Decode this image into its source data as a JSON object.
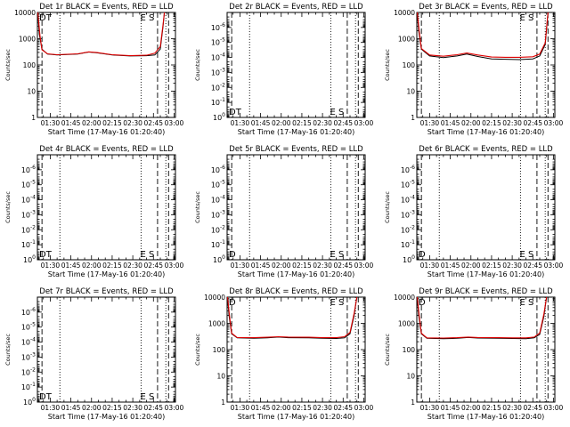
{
  "figure": {
    "panels": [
      {
        "title": "Det 1r BLACK = Events, RED = LLD",
        "scale": "A",
        "ylabel": "Counts/sec",
        "xlabel": "Start Time (17-May-16 01:20:40)",
        "markers": {
          "left": "DT",
          "right": "E S"
        }
      },
      {
        "title": "Det 2r BLACK = Events, RED = LLD",
        "scale": "B",
        "ylabel": "Counts/sec",
        "xlabel": "Start Time (17-May-16 01:20:40)",
        "markers": {
          "left": "DT",
          "right": "E S"
        }
      },
      {
        "title": "Det 3r BLACK = Events, RED = LLD",
        "scale": "A",
        "ylabel": "Counts/sec",
        "xlabel": "Start Time (17-May-16 01:20:40)",
        "markers": {
          "left": "",
          "right": "E S"
        }
      },
      {
        "title": "Det 4r BLACK = Events, RED = LLD",
        "scale": "B",
        "ylabel": "Counts/sec",
        "xlabel": "Start Time (17-May-16 01:20:40)",
        "markers": {
          "left": "DT",
          "right": "E S"
        }
      },
      {
        "title": "Det 5r BLACK = Events, RED = LLD",
        "scale": "B",
        "ylabel": "Counts/sec",
        "xlabel": "Start Time (17-May-16 01:20:40)",
        "markers": {
          "left": "D",
          "right": "E S"
        }
      },
      {
        "title": "Det 6r BLACK = Events, RED = LLD",
        "scale": "B",
        "ylabel": "Counts/sec",
        "xlabel": "Start Time (17-May-16 01:20:40)",
        "markers": {
          "left": "D",
          "right": "E S"
        }
      },
      {
        "title": "Det 7r BLACK = Events, RED = LLD",
        "scale": "B",
        "ylabel": "Counts/sec",
        "xlabel": "Start Time (17-May-16 01:20:40)",
        "markers": {
          "left": "DT",
          "right": "E S"
        }
      },
      {
        "title": "Det 8r BLACK = Events, RED = LLD",
        "scale": "A",
        "ylabel": "Counts/sec",
        "xlabel": "Start Time (17-May-16 01:20:40)",
        "markers": {
          "left": "D",
          "right": "E S"
        }
      },
      {
        "title": "Det 9r BLACK = Events, RED = LLD",
        "scale": "A",
        "ylabel": "Counts/sec",
        "xlabel": "Start Time (17-May-16 01:20:40)",
        "markers": {
          "left": "D",
          "right": "E S"
        }
      }
    ]
  },
  "chart_data": {
    "type": "line",
    "x_ticks": [
      "01:30",
      "01:45",
      "02:00",
      "02:15",
      "02:30",
      "02:45",
      "03:00"
    ],
    "x_tick_minutes": [
      90,
      105,
      120,
      135,
      150,
      165,
      180
    ],
    "xlim_minutes": [
      80.67,
      181
    ],
    "y_scale": "log",
    "scales": {
      "A": {
        "ylim": [
          1,
          10000
        ],
        "ticks": [
          {
            "v": 1,
            "label": "1"
          },
          {
            "v": 10,
            "label": "10"
          },
          {
            "v": 100,
            "label": "100"
          },
          {
            "v": 1000,
            "label": "1000"
          },
          {
            "v": 10000,
            "label": "10000"
          }
        ]
      },
      "B": {
        "ylim": [
          1,
          1e-07
        ],
        "ticks": [
          {
            "v": 1,
            "label": "10^0"
          },
          {
            "v": 0.1,
            "label": "10^-1"
          },
          {
            "v": 0.01,
            "label": "10^-2"
          },
          {
            "v": 0.001,
            "label": "10^-3"
          },
          {
            "v": 0.0001,
            "label": "10^-4"
          },
          {
            "v": 1e-05,
            "label": "10^-5"
          },
          {
            "v": 1e-06,
            "label": "10^-6"
          }
        ]
      }
    },
    "vlines": {
      "dashed": [
        84,
        168,
        176
      ],
      "dotted": [
        97,
        156,
        174
      ]
    },
    "series_colors": {
      "events": "#000000",
      "lld": "#dd0000"
    },
    "panels": [
      {
        "det": "1r",
        "events": [
          [
            81,
            10000
          ],
          [
            82,
            1500
          ],
          [
            84,
            400
          ],
          [
            88,
            260
          ],
          [
            95,
            240
          ],
          [
            110,
            260
          ],
          [
            118,
            310
          ],
          [
            124,
            290
          ],
          [
            135,
            240
          ],
          [
            148,
            220
          ],
          [
            160,
            225
          ],
          [
            166,
            240
          ],
          [
            170,
            400
          ],
          [
            172,
            3000
          ],
          [
            173,
            10000
          ]
        ],
        "lld": [
          [
            81,
            10000
          ],
          [
            82.5,
            1400
          ],
          [
            84,
            380
          ],
          [
            88,
            265
          ],
          [
            95,
            245
          ],
          [
            110,
            265
          ],
          [
            118,
            315
          ],
          [
            124,
            295
          ],
          [
            135,
            245
          ],
          [
            148,
            225
          ],
          [
            160,
            235
          ],
          [
            166,
            280
          ],
          [
            170,
            500
          ],
          [
            172,
            3500
          ],
          [
            173,
            10000
          ]
        ]
      },
      {
        "det": "2r",
        "events": [],
        "lld": []
      },
      {
        "det": "3r",
        "events": [
          [
            81,
            10000
          ],
          [
            82,
            2000
          ],
          [
            84,
            400
          ],
          [
            90,
            220
          ],
          [
            100,
            190
          ],
          [
            110,
            220
          ],
          [
            117,
            260
          ],
          [
            125,
            210
          ],
          [
            135,
            170
          ],
          [
            145,
            165
          ],
          [
            155,
            160
          ],
          [
            165,
            170
          ],
          [
            170,
            220
          ],
          [
            174,
            600
          ],
          [
            176,
            10000
          ]
        ],
        "lld": [
          [
            81,
            10000
          ],
          [
            82.5,
            1800
          ],
          [
            84,
            420
          ],
          [
            90,
            240
          ],
          [
            100,
            215
          ],
          [
            110,
            245
          ],
          [
            117,
            285
          ],
          [
            125,
            240
          ],
          [
            135,
            200
          ],
          [
            145,
            195
          ],
          [
            155,
            195
          ],
          [
            165,
            205
          ],
          [
            170,
            260
          ],
          [
            174,
            700
          ],
          [
            176,
            10000
          ]
        ]
      },
      {
        "det": "4r",
        "events": [],
        "lld": []
      },
      {
        "det": "5r",
        "events": [],
        "lld": []
      },
      {
        "det": "6r",
        "events": [],
        "lld": []
      },
      {
        "det": "7r",
        "events": [],
        "lld": []
      },
      {
        "det": "8r",
        "events": [
          [
            81,
            10000
          ],
          [
            82,
            2000
          ],
          [
            84,
            400
          ],
          [
            88,
            280
          ],
          [
            100,
            270
          ],
          [
            110,
            280
          ],
          [
            118,
            300
          ],
          [
            125,
            285
          ],
          [
            140,
            280
          ],
          [
            150,
            270
          ],
          [
            160,
            265
          ],
          [
            166,
            280
          ],
          [
            170,
            400
          ],
          [
            173,
            2000
          ],
          [
            175,
            10000
          ]
        ],
        "lld": [
          [
            81,
            10000
          ],
          [
            82.5,
            1800
          ],
          [
            84,
            420
          ],
          [
            88,
            290
          ],
          [
            100,
            285
          ],
          [
            110,
            295
          ],
          [
            118,
            310
          ],
          [
            125,
            300
          ],
          [
            140,
            295
          ],
          [
            150,
            285
          ],
          [
            160,
            285
          ],
          [
            166,
            310
          ],
          [
            170,
            450
          ],
          [
            173,
            2400
          ],
          [
            175,
            10000
          ]
        ]
      },
      {
        "det": "9r",
        "events": [
          [
            81,
            10000
          ],
          [
            82,
            2000
          ],
          [
            84,
            400
          ],
          [
            88,
            270
          ],
          [
            100,
            260
          ],
          [
            110,
            270
          ],
          [
            118,
            290
          ],
          [
            125,
            275
          ],
          [
            140,
            270
          ],
          [
            150,
            265
          ],
          [
            160,
            260
          ],
          [
            166,
            280
          ],
          [
            170,
            380
          ],
          [
            173,
            1800
          ],
          [
            175,
            10000
          ]
        ],
        "lld": [
          [
            81,
            10000
          ],
          [
            82.5,
            1800
          ],
          [
            84,
            420
          ],
          [
            88,
            280
          ],
          [
            100,
            275
          ],
          [
            110,
            285
          ],
          [
            118,
            300
          ],
          [
            125,
            290
          ],
          [
            140,
            285
          ],
          [
            150,
            280
          ],
          [
            160,
            280
          ],
          [
            166,
            300
          ],
          [
            170,
            430
          ],
          [
            173,
            2200
          ],
          [
            175,
            10000
          ]
        ]
      }
    ]
  }
}
